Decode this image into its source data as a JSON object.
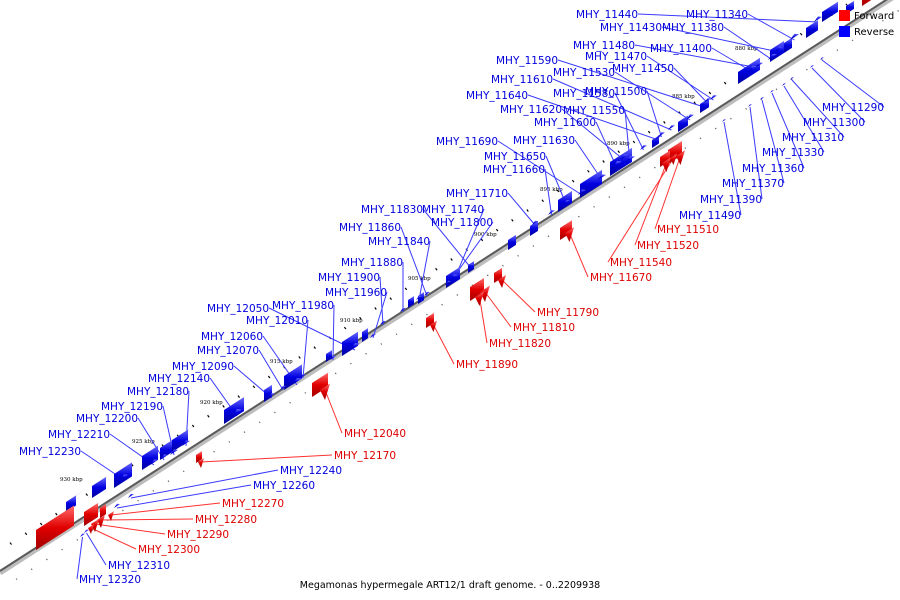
{
  "caption": "Megamonas hypermegale ART12/1 draft genome. - 0..2209938",
  "colors": {
    "forward": "#e60000",
    "reverse": "#0000e6",
    "forward_line": "#ff3030",
    "reverse_line": "#3a3aff"
  },
  "legend": [
    {
      "label": "Forward",
      "color": "#ff0000"
    },
    {
      "label": "Reverse",
      "color": "#0000ff"
    }
  ],
  "kbp_labels": [
    "880 kbp",
    "885 kbp",
    "890 kbp",
    "895 kbp",
    "900 kbp",
    "905 kbp",
    "910 kbp",
    "915 kbp",
    "920 kbp",
    "925 kbp",
    "930 kbp"
  ],
  "genes": [
    {
      "name": "MHY_11440",
      "strand": "reverse"
    },
    {
      "name": "MHY_11340",
      "strand": "reverse"
    },
    {
      "name": "MHY_11430",
      "strand": "reverse"
    },
    {
      "name": "MHY_11380",
      "strand": "reverse"
    },
    {
      "name": "MHY_11480",
      "strand": "reverse"
    },
    {
      "name": "MHY_11400",
      "strand": "reverse"
    },
    {
      "name": "MHY_11590",
      "strand": "reverse"
    },
    {
      "name": "MHY_11470",
      "strand": "reverse"
    },
    {
      "name": "MHY_11530",
      "strand": "reverse"
    },
    {
      "name": "MHY_11450",
      "strand": "reverse"
    },
    {
      "name": "MHY_11610",
      "strand": "reverse"
    },
    {
      "name": "MHY_11640",
      "strand": "reverse"
    },
    {
      "name": "MHY_11580",
      "strand": "reverse"
    },
    {
      "name": "MHY_11500",
      "strand": "reverse"
    },
    {
      "name": "MHY_11620",
      "strand": "reverse"
    },
    {
      "name": "MHY_11550",
      "strand": "reverse"
    },
    {
      "name": "MHY_11600",
      "strand": "reverse"
    },
    {
      "name": "MHY_11630",
      "strand": "reverse"
    },
    {
      "name": "MHY_11690",
      "strand": "reverse"
    },
    {
      "name": "MHY_11650",
      "strand": "reverse"
    },
    {
      "name": "MHY_11660",
      "strand": "reverse"
    },
    {
      "name": "MHY_11710",
      "strand": "reverse"
    },
    {
      "name": "MHY_11830",
      "strand": "reverse"
    },
    {
      "name": "MHY_11740",
      "strand": "reverse"
    },
    {
      "name": "MHY_11800",
      "strand": "reverse"
    },
    {
      "name": "MHY_11860",
      "strand": "reverse"
    },
    {
      "name": "MHY_11840",
      "strand": "reverse"
    },
    {
      "name": "MHY_11880",
      "strand": "reverse"
    },
    {
      "name": "MHY_11900",
      "strand": "reverse"
    },
    {
      "name": "MHY_11960",
      "strand": "reverse"
    },
    {
      "name": "MHY_12050",
      "strand": "reverse"
    },
    {
      "name": "MHY_11980",
      "strand": "reverse"
    },
    {
      "name": "MHY_12010",
      "strand": "reverse"
    },
    {
      "name": "MHY_12060",
      "strand": "reverse"
    },
    {
      "name": "MHY_12070",
      "strand": "reverse"
    },
    {
      "name": "MHY_12090",
      "strand": "reverse"
    },
    {
      "name": "MHY_12140",
      "strand": "reverse"
    },
    {
      "name": "MHY_12180",
      "strand": "reverse"
    },
    {
      "name": "MHY_12190",
      "strand": "reverse"
    },
    {
      "name": "MHY_12200",
      "strand": "reverse"
    },
    {
      "name": "MHY_12210",
      "strand": "reverse"
    },
    {
      "name": "MHY_12230",
      "strand": "reverse"
    },
    {
      "name": "MHY_11290",
      "strand": "reverse"
    },
    {
      "name": "MHY_11300",
      "strand": "reverse"
    },
    {
      "name": "MHY_11310",
      "strand": "reverse"
    },
    {
      "name": "MHY_11330",
      "strand": "reverse"
    },
    {
      "name": "MHY_11360",
      "strand": "reverse"
    },
    {
      "name": "MHY_11370",
      "strand": "reverse"
    },
    {
      "name": "MHY_11390",
      "strand": "reverse"
    },
    {
      "name": "MHY_11490",
      "strand": "reverse"
    },
    {
      "name": "MHY_11510",
      "strand": "forward"
    },
    {
      "name": "MHY_11520",
      "strand": "forward"
    },
    {
      "name": "MHY_11540",
      "strand": "forward"
    },
    {
      "name": "MHY_11670",
      "strand": "forward"
    },
    {
      "name": "MHY_11790",
      "strand": "forward"
    },
    {
      "name": "MHY_11810",
      "strand": "forward"
    },
    {
      "name": "MHY_11820",
      "strand": "forward"
    },
    {
      "name": "MHY_11890",
      "strand": "forward"
    },
    {
      "name": "MHY_12040",
      "strand": "forward"
    },
    {
      "name": "MHY_12170",
      "strand": "forward"
    },
    {
      "name": "MHY_12240",
      "strand": "reverse"
    },
    {
      "name": "MHY_12260",
      "strand": "reverse"
    },
    {
      "name": "MHY_12270",
      "strand": "forward"
    },
    {
      "name": "MHY_12280",
      "strand": "forward"
    },
    {
      "name": "MHY_12290",
      "strand": "forward"
    },
    {
      "name": "MHY_12300",
      "strand": "forward"
    },
    {
      "name": "MHY_12310",
      "strand": "reverse"
    },
    {
      "name": "MHY_12320",
      "strand": "reverse"
    }
  ]
}
